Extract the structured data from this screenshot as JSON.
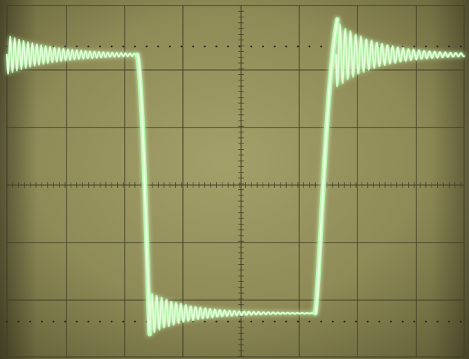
{
  "scope": {
    "screen_color": "#8b8755",
    "graticule_color": "#3f3d27",
    "trace_color": "#e9ffe0",
    "trace_glow_color": "#b8ffb0",
    "divisions": {
      "horizontal": 8,
      "vertical": 6
    }
  },
  "waveform": {
    "type": "square-wave-with-ringing",
    "description_visible": false
  }
}
